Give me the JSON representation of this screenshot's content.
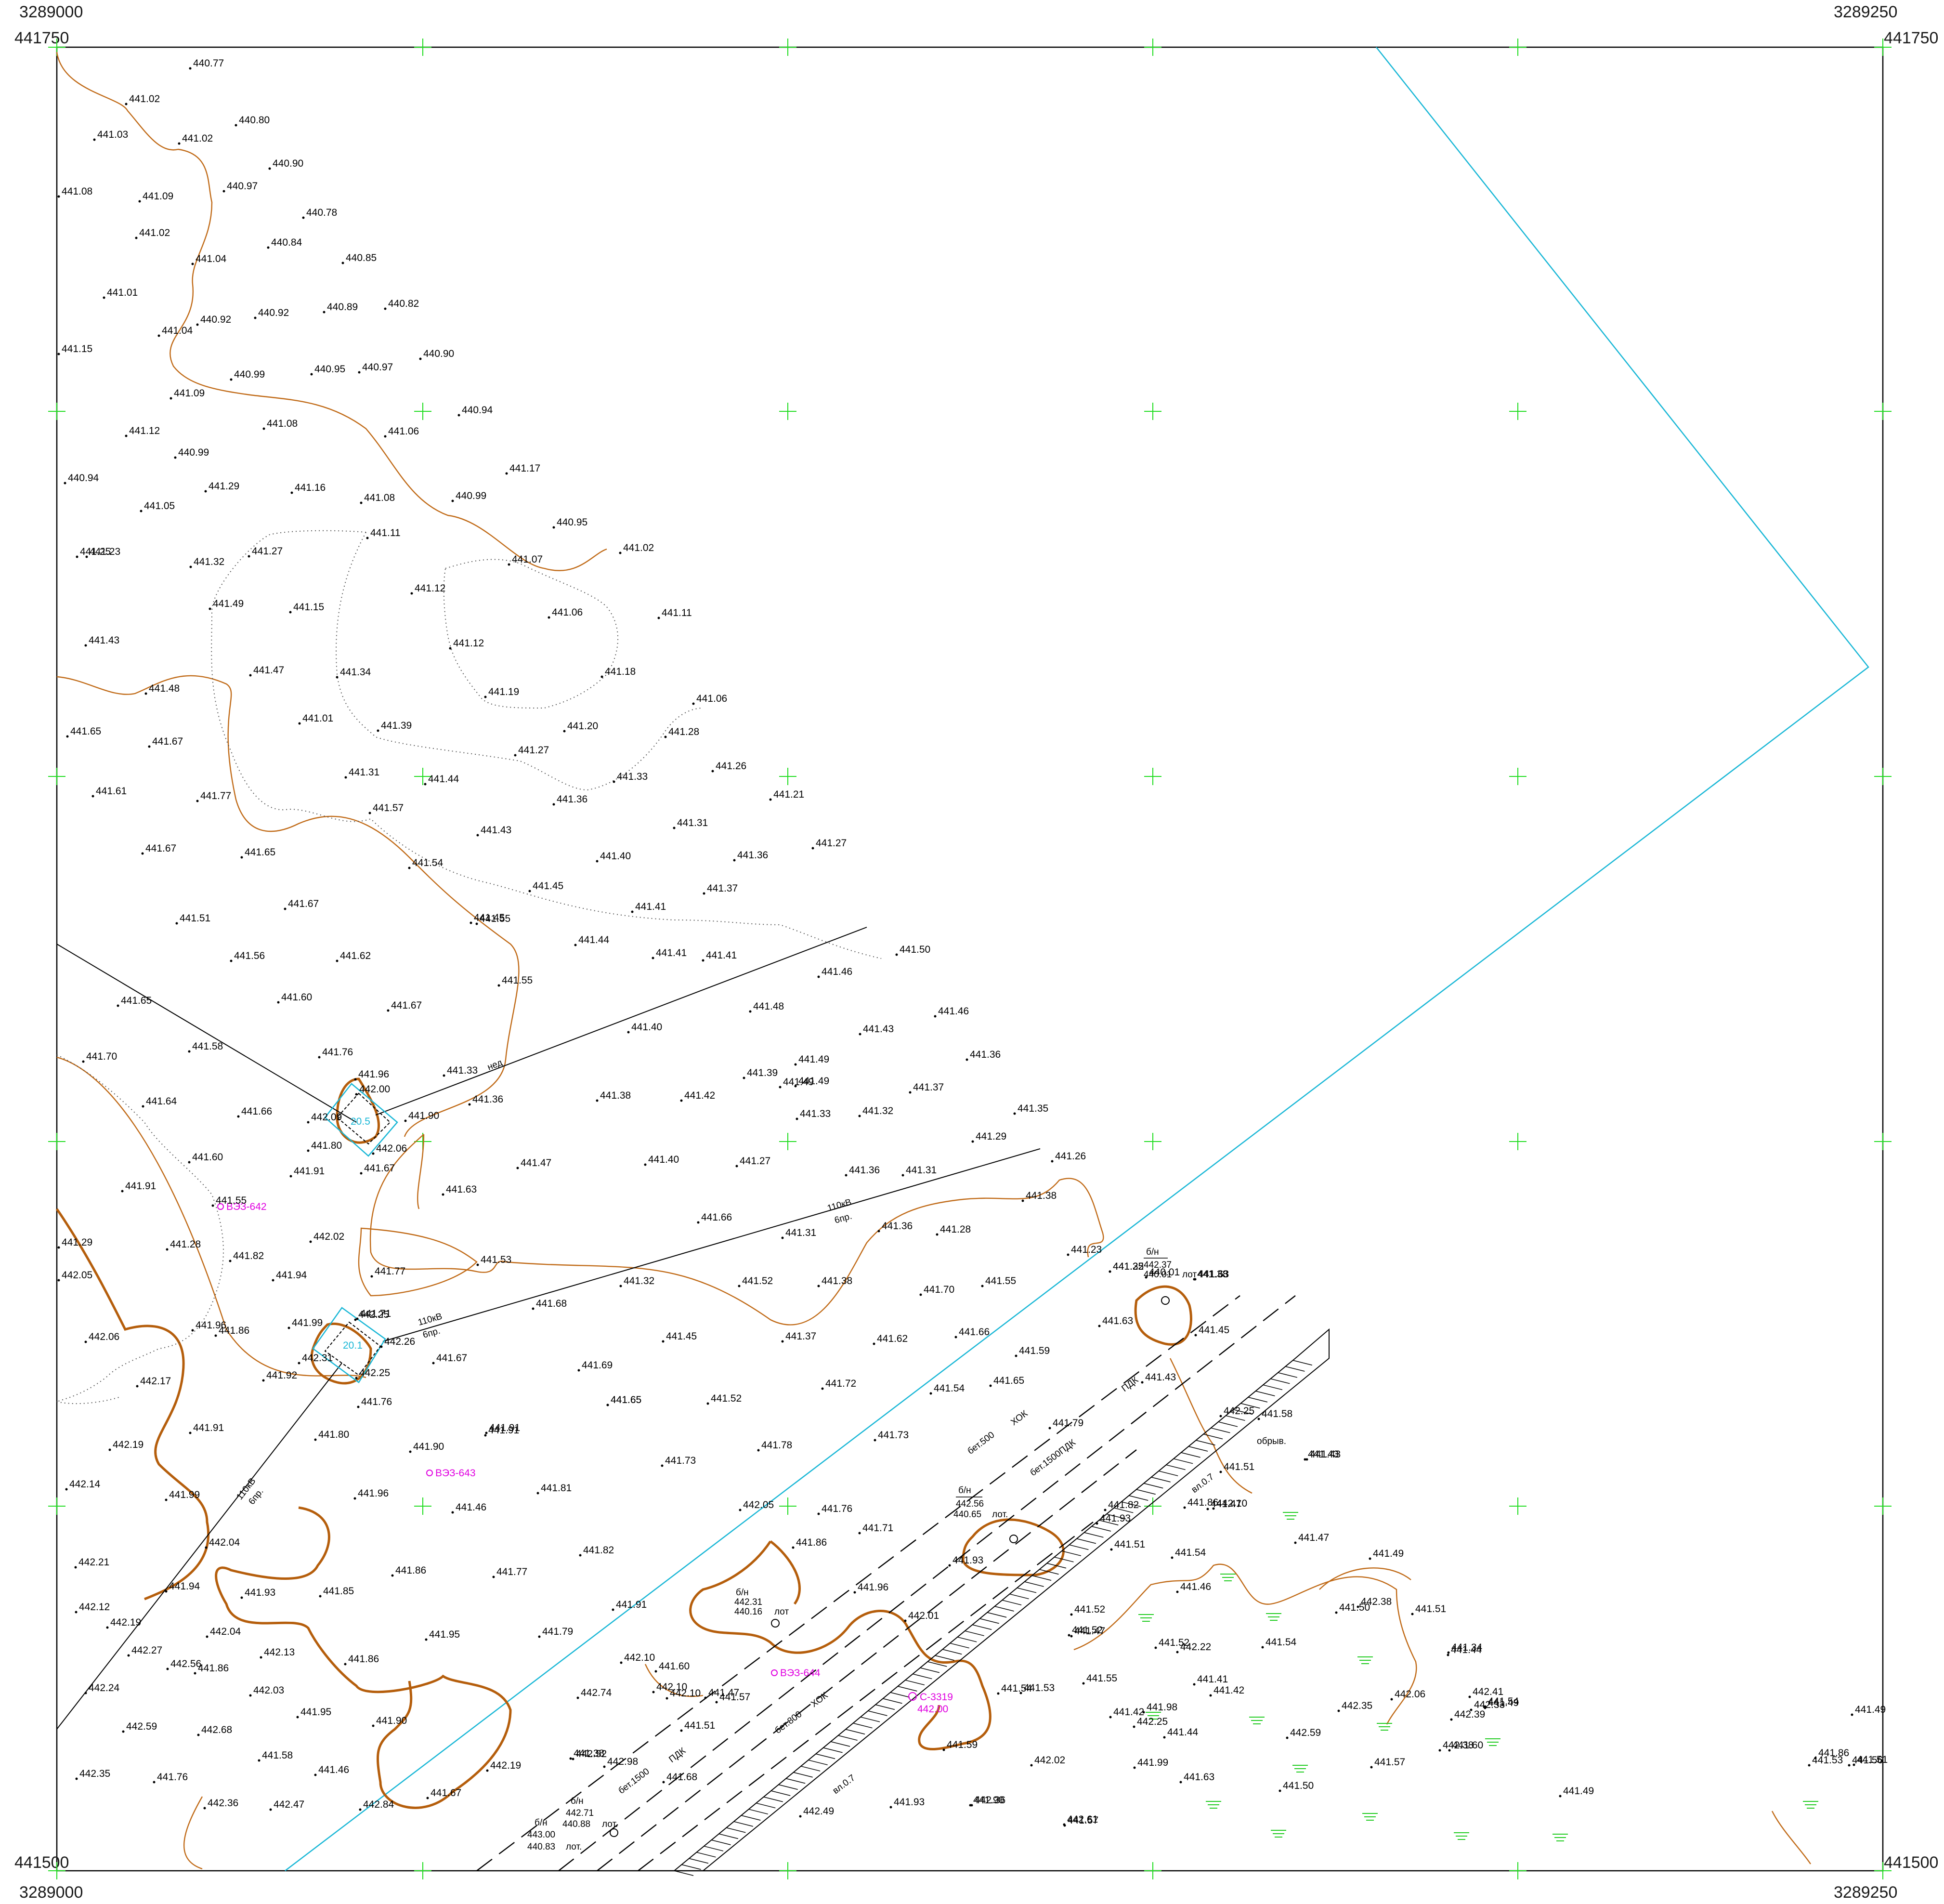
{
  "frame": {
    "x_left": "3289000",
    "x_right": "3289250",
    "y_top": "441750",
    "y_bottom": "441500"
  },
  "spot_heights": [
    "440.77",
    "441.02",
    "441.03",
    "441.02",
    "440.80",
    "440.90",
    "441.08",
    "441.09",
    "440.97",
    "440.78",
    "441.02",
    "440.84",
    "441.04",
    "440.85",
    "441.01",
    "441.04",
    "440.92",
    "440.92",
    "440.89",
    "440.82",
    "441.15",
    "440.99",
    "440.95",
    "440.97",
    "440.90",
    "441.09",
    "440.94",
    "441.12",
    "441.08",
    "441.06",
    "440.99",
    "441.17",
    "440.94",
    "441.29",
    "441.16",
    "441.08",
    "441.05",
    "440.99",
    "441.23",
    "440.95",
    "441.11",
    "441.25",
    "441.27",
    "441.32",
    "441.07",
    "441.02",
    "441.12",
    "441.49",
    "441.15",
    "441.06",
    "441.11",
    "441.43",
    "441.12",
    "441.47",
    "441.34",
    "441.18",
    "441.48",
    "441.19",
    "441.06",
    "441.01",
    "441.39",
    "441.20",
    "441.65",
    "441.67",
    "441.27",
    "441.28",
    "441.31",
    "441.44",
    "441.33",
    "441.26",
    "441.61",
    "441.77",
    "441.36",
    "441.21",
    "441.57",
    "441.31",
    "441.67",
    "441.65",
    "441.43",
    "441.27",
    "441.40",
    "441.36",
    "441.54",
    "441.45",
    "441.37",
    "441.41",
    "441.67",
    "441.45",
    "441.51",
    "441.55",
    "441.44",
    "441.56",
    "441.62",
    "441.41",
    "441.41",
    "441.50",
    "441.46",
    "441.55",
    "441.46",
    "441.60",
    "441.65",
    "441.67",
    "441.48",
    "441.40",
    "441.49",
    "441.43",
    "441.58",
    "441.76",
    "441.36",
    "441.70",
    "441.96",
    "441.33",
    "441.39",
    "441.49",
    "442.00",
    "441.49",
    "441.37",
    "441.64",
    "441.36",
    "441.38",
    "441.42",
    "441.66",
    "441.33",
    "441.32",
    "441.35",
    "442.09",
    "441.90",
    "441.29",
    "441.80",
    "442.06",
    "441.60",
    "441.47",
    "441.40",
    "441.27",
    "441.36",
    "441.31",
    "441.26",
    "441.91",
    "441.67",
    "441.91",
    "441.63",
    "441.38",
    "441.55",
    "441.66",
    "441.31",
    "441.36",
    "441.28",
    "441.29",
    "441.28",
    "442.02",
    "441.82",
    "441.94",
    "441.77",
    "441.53",
    "441.32",
    "441.52",
    "441.38",
    "441.23",
    "441.25",
    "441.63",
    "441.32",
    "440.01",
    "441.38",
    "442.05",
    "441.71",
    "441.70",
    "441.55",
    "441.96",
    "442.25",
    "441.68",
    "441.86",
    "441.99",
    "442.26",
    "441.45",
    "441.37",
    "441.62",
    "441.66",
    "441.63",
    "441.45",
    "442.06",
    "442.31",
    "442.25",
    "441.67",
    "441.59",
    "441.92",
    "441.69",
    "441.65",
    "441.72",
    "441.54",
    "441.65",
    "441.43",
    "442.17",
    "441.76",
    "441.65",
    "441.52",
    "442.25",
    "441.91",
    "441.91",
    "441.79",
    "441.80",
    "441.73",
    "441.58",
    "441.43",
    "442.19",
    "441.90",
    "441.78",
    "441.91",
    "441.73",
    "441.51",
    "441.43",
    "441.81",
    "442.14",
    "441.99",
    "441.96",
    "441.93",
    "441.86",
    "441.47",
    "441.46",
    "441.82",
    "441.71",
    "442.10",
    "442.05",
    "441.76",
    "441.51",
    "441.54",
    "441.47",
    "441.49",
    "442.04",
    "441.82",
    "442.21",
    "441.93",
    "441.77",
    "441.86",
    "441.86",
    "441.46",
    "442.38",
    "442.12",
    "441.94",
    "441.93",
    "441.85",
    "441.96",
    "442.01",
    "441.52",
    "441.50",
    "441.51",
    "442.19",
    "442.04",
    "441.95",
    "441.79",
    "441.91",
    "441.52",
    "441.47",
    "441.52",
    "441.54",
    "441.44",
    "442.27",
    "442.13",
    "441.86",
    "442.10",
    "441.60",
    "442.22",
    "441.34",
    "442.56",
    "442.10",
    "441.47",
    "441.54",
    "441.55",
    "441.42",
    "442.35",
    "442.06",
    "441.86",
    "442.10",
    "441.57",
    "441.53",
    "441.42",
    "441.41",
    "442.41",
    "442.33",
    "442.24",
    "442.03",
    "442.74",
    "441.98",
    "441.54",
    "441.49",
    "441.49",
    "442.39",
    "442.25",
    "442.59",
    "442.68",
    "441.95",
    "441.90",
    "441.51",
    "441.59",
    "441.44",
    "442.59",
    "442.38",
    "441.86",
    "441.60",
    "441.58",
    "441.46",
    "442.52",
    "442.98",
    "442.19",
    "442.02",
    "441.99",
    "441.57",
    "441.53",
    "441.38",
    "442.35",
    "441.76",
    "441.68",
    "441.67",
    "441.63",
    "441.50",
    "441.51",
    "441.56",
    "441.49",
    "442.49",
    "442.61",
    "442.36",
    "442.36",
    "442.47",
    "442.84",
    "441.93",
    "441.90",
    "441.57"
  ],
  "spot_labels_misc": {
    "well_label_1": "б/н",
    "well_1_top": "442.37",
    "well_1_bottom": "440.01",
    "well_1_tag": "лот",
    "well_label_2": "б/н",
    "well_2_top": "442.56",
    "well_2_bottom": "440.65",
    "well_2_tag": "лот.",
    "well_label_3": "б/н",
    "well_3_top": "442.31",
    "well_3_bottom": "440.16",
    "well_3_tag": "лот",
    "well_label_4": "б/н",
    "well_4_top": "442.71",
    "well_4_bottom": "440.88",
    "well_4_tag": "лот.",
    "well_label_5": "б/н",
    "well_5_top": "443.00",
    "well_5_bottom": "440.83",
    "well_5_tag": "лот."
  },
  "line_labels": {
    "power_110_a": "110кВ",
    "power_110_a_sub": "6пр.",
    "power_110_b": "110кВ",
    "power_110_b_sub": "6пр.",
    "power_110_c": "110кВ",
    "power_110_c_sub": "6пр.",
    "neg": "нед",
    "pipe_500": "бет.500",
    "pipe_500_sub": "ХОК",
    "pipe_1500": "бет.1500ПДК",
    "pipe_800": "бет.800",
    "pipe_800_sub": "ХОК",
    "pipe_1500b": "бет.1500",
    "pipe_1500b_sub": "ПДК",
    "pdk": "ПДК",
    "embank_1": "вл.0.7",
    "embank_2": "вл.0.7",
    "obrv": "обрыв.",
    "cyan_num_1": "20.5",
    "cyan_num_2": "20.1"
  },
  "bore_points": [
    {
      "label": "ВЭЗ-642"
    },
    {
      "label": "ВЭЗ-643"
    },
    {
      "label": "ВЭЗ-644"
    },
    {
      "label": "С-3319",
      "value": "442.00"
    }
  ],
  "colors": {
    "contour": "#c06a17",
    "contour_bold": "#b55e0c",
    "boundary": "#19b7d6",
    "grid_cross": "#22dd22",
    "survey_point": "#e000e0"
  },
  "icons": [
    "grid-cross-icon",
    "well-icon",
    "bore-point-icon",
    "marsh-symbol-icon"
  ]
}
